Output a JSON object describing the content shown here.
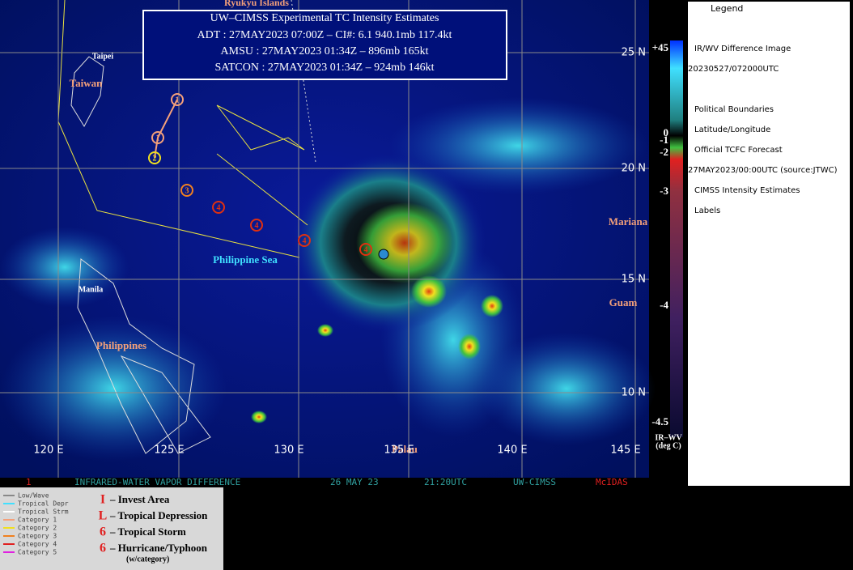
{
  "info_box": {
    "title": "UW–CIMSS Experimental TC Intensity Estimates",
    "lines": [
      "ADT : 27MAY2023 07:00Z –  CI#: 6.1   940.1mb   117.4kt",
      "AMSU : 27MAY2023 01:34Z –  896mb  165kt",
      "SATCON : 27MAY2023 01:34Z –  924mb  146kt"
    ]
  },
  "place_labels": [
    "Ryukyu Islands",
    "Taipei",
    "Taiwan",
    "Philippine Sea",
    "Manila",
    "Philippines",
    "Mariana",
    "Guam",
    "Palau"
  ],
  "lat_labels": [
    "25 N",
    "20 N",
    "15 N",
    "10 N"
  ],
  "lon_labels": [
    "120 E",
    "125 E",
    "130 E",
    "135 E",
    "140 E",
    "145 E"
  ],
  "track_labels": [
    "1",
    "1",
    "2",
    "3",
    "4",
    "4",
    "4",
    "4"
  ],
  "status_bar": [
    "1",
    "INFRARED-WATER VAPOR DIFFERENCE",
    "26 MAY 23",
    "21:20UTC",
    "UW-CIMSS",
    "McIDAS"
  ],
  "track_key": [
    "Low/Wave",
    "Tropical Depr",
    "Tropical Strm",
    "Category 1",
    "Category 2",
    "Category 3",
    "Category 4",
    "Category 5"
  ],
  "symbol_key": [
    {
      "symbol": "I",
      "label": "– Invest Area"
    },
    {
      "symbol": "L",
      "label": "– Tropical Depression"
    },
    {
      "symbol": "6",
      "label": "– Tropical Storm"
    },
    {
      "symbol": "6",
      "label": "– Hurricane/Typhoon"
    }
  ],
  "symbol_note": "(w/category)",
  "colorbar": {
    "labels": [
      "+45",
      "0",
      "-1",
      "-2",
      "-3",
      "-4",
      "-4.5"
    ],
    "title": "IR–WV",
    "unit": "(deg C)"
  },
  "legend": {
    "title": "Legend",
    "items": [
      "IR/WV Difference Image",
      "20230527/072000UTC",
      "Political Boundaries",
      "Latitude/Longitude",
      "Official TCFC Forecast",
      "27MAY2023/00:00UTC  (source:JTWC)",
      "CIMSS Intensity Estimates",
      "Labels"
    ]
  }
}
